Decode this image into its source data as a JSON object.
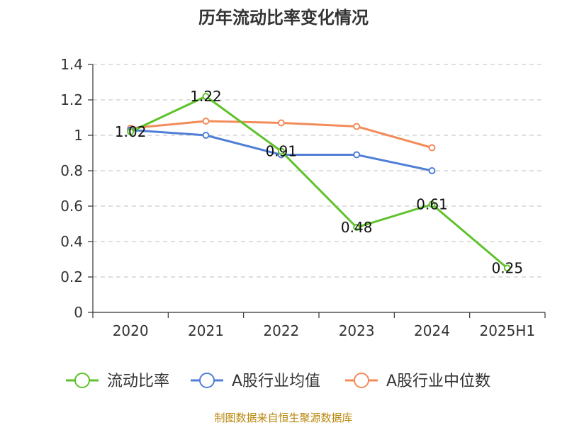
{
  "chart_data": {
    "type": "line",
    "title": "历年流动比率变化情况",
    "categories": [
      "2020",
      "2021",
      "2022",
      "2023",
      "2024",
      "2025H1"
    ],
    "ylim": [
      0,
      1.4
    ],
    "yticks": [
      0,
      0.2,
      0.4,
      0.6,
      0.8,
      1,
      1.2,
      1.4
    ],
    "ytick_labels": [
      "0",
      "0.2",
      "0.4",
      "0.6",
      "0.8",
      "1",
      "1.2",
      "1.4"
    ],
    "grid": true,
    "legend_position": "bottom",
    "series": [
      {
        "name": "流动比率",
        "color": "#5ec229",
        "values": [
          1.02,
          1.22,
          0.91,
          0.48,
          0.61,
          0.25
        ],
        "data_labels": [
          "1.02",
          "1.22",
          "0.91",
          "0.48",
          "0.61",
          "0.25"
        ]
      },
      {
        "name": "A股行业均值",
        "color": "#4f7fd6",
        "values": [
          1.03,
          1.0,
          0.89,
          0.89,
          0.8,
          null
        ]
      },
      {
        "name": "A股行业中位数",
        "color": "#f28c5a",
        "values": [
          1.04,
          1.08,
          1.07,
          1.05,
          0.93,
          null
        ]
      }
    ]
  },
  "source": "制图数据来自恒生聚源数据库"
}
